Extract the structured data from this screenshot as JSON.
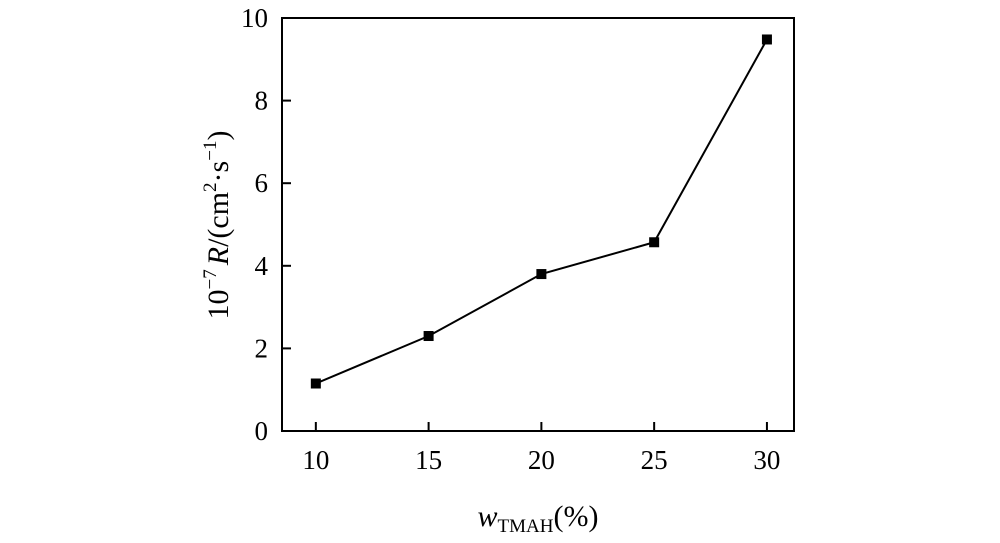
{
  "chart_data": {
    "type": "line",
    "x": [
      10,
      15,
      20,
      25,
      30
    ],
    "series": [
      {
        "values": [
          1.15,
          2.3,
          3.8,
          4.57,
          9.48
        ]
      }
    ],
    "xticks": [
      10,
      15,
      20,
      25,
      30
    ],
    "yticks": [
      0,
      2,
      4,
      6,
      8,
      10
    ],
    "xlim": [
      8.5,
      31.2
    ],
    "ylim": [
      0,
      10
    ],
    "xlabel": {
      "symbol": "w",
      "subscript": "TMAH",
      "unit": "(%)"
    },
    "ylabel": {
      "prefix": "10",
      "exponent": "−7",
      "symbol": "R",
      "unit_open": "/(cm",
      "unit_sq": "2",
      "unit_mid": "·s",
      "unit_inv": "−1",
      "unit_close": ")"
    },
    "grid": false,
    "legend": false,
    "colors": {
      "line": "#000000",
      "marker": "#000000",
      "axes": "#000000"
    }
  }
}
